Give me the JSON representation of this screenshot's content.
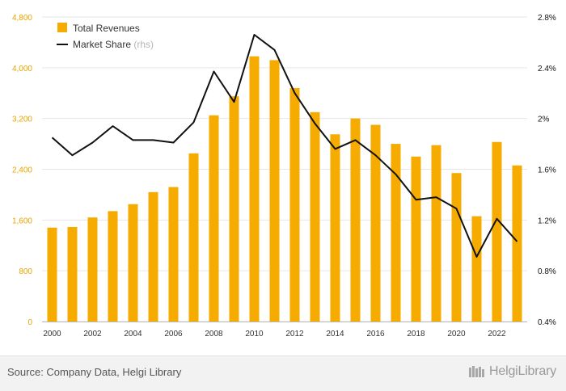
{
  "colors": {
    "bar": "#f5ab00",
    "line": "#111111",
    "left_axis": "#e8a400",
    "right_axis": "#111111",
    "grid": "#e6e6e6"
  },
  "chart_data": {
    "type": "bar",
    "x": [
      2000,
      2001,
      2002,
      2003,
      2004,
      2005,
      2006,
      2007,
      2008,
      2009,
      2010,
      2011,
      2012,
      2013,
      2014,
      2015,
      2016,
      2017,
      2018,
      2019,
      2020,
      2021,
      2022,
      2023
    ],
    "x_tick_labels": [
      "2000",
      "2002",
      "2004",
      "2006",
      "2008",
      "2010",
      "2012",
      "2014",
      "2016",
      "2018",
      "2020",
      "2022"
    ],
    "series": [
      {
        "name": "Total Revenues",
        "kind": "bar",
        "axis": "left",
        "values": [
          1480,
          1490,
          1640,
          1740,
          1850,
          2040,
          2120,
          2650,
          3250,
          3550,
          4180,
          4120,
          3680,
          3300,
          2950,
          3200,
          3100,
          2800,
          2600,
          2780,
          2340,
          1660,
          2830,
          2460
        ]
      },
      {
        "name": "Market Share",
        "kind": "line",
        "axis": "right",
        "legend_suffix": " (rhs)",
        "values": [
          1.85,
          1.71,
          1.81,
          1.94,
          1.83,
          1.83,
          1.81,
          1.97,
          2.37,
          2.13,
          2.66,
          2.54,
          2.2,
          1.96,
          1.76,
          1.83,
          1.71,
          1.56,
          1.36,
          1.38,
          1.29,
          0.91,
          1.21,
          1.03
        ]
      }
    ],
    "left_axis": {
      "ylim": [
        0,
        4800
      ],
      "ticks": [
        0,
        800,
        1600,
        2400,
        3200,
        4000,
        4800
      ],
      "tick_labels": [
        "0",
        "800",
        "1,600",
        "2,400",
        "3,200",
        "4,000",
        "4,800"
      ]
    },
    "right_axis": {
      "ylim": [
        0.4,
        2.8
      ],
      "ticks": [
        0.4,
        0.8,
        1.2,
        1.6,
        2.0,
        2.4,
        2.8
      ],
      "tick_labels": [
        "0.4%",
        "0.8%",
        "1.2%",
        "1.6%",
        "2%",
        "2.4%",
        "2.8%"
      ]
    },
    "legend_position": "top-left"
  },
  "footer": {
    "source": "Source: Company Data, Helgi Library",
    "brand": "HelgiLibrary"
  }
}
